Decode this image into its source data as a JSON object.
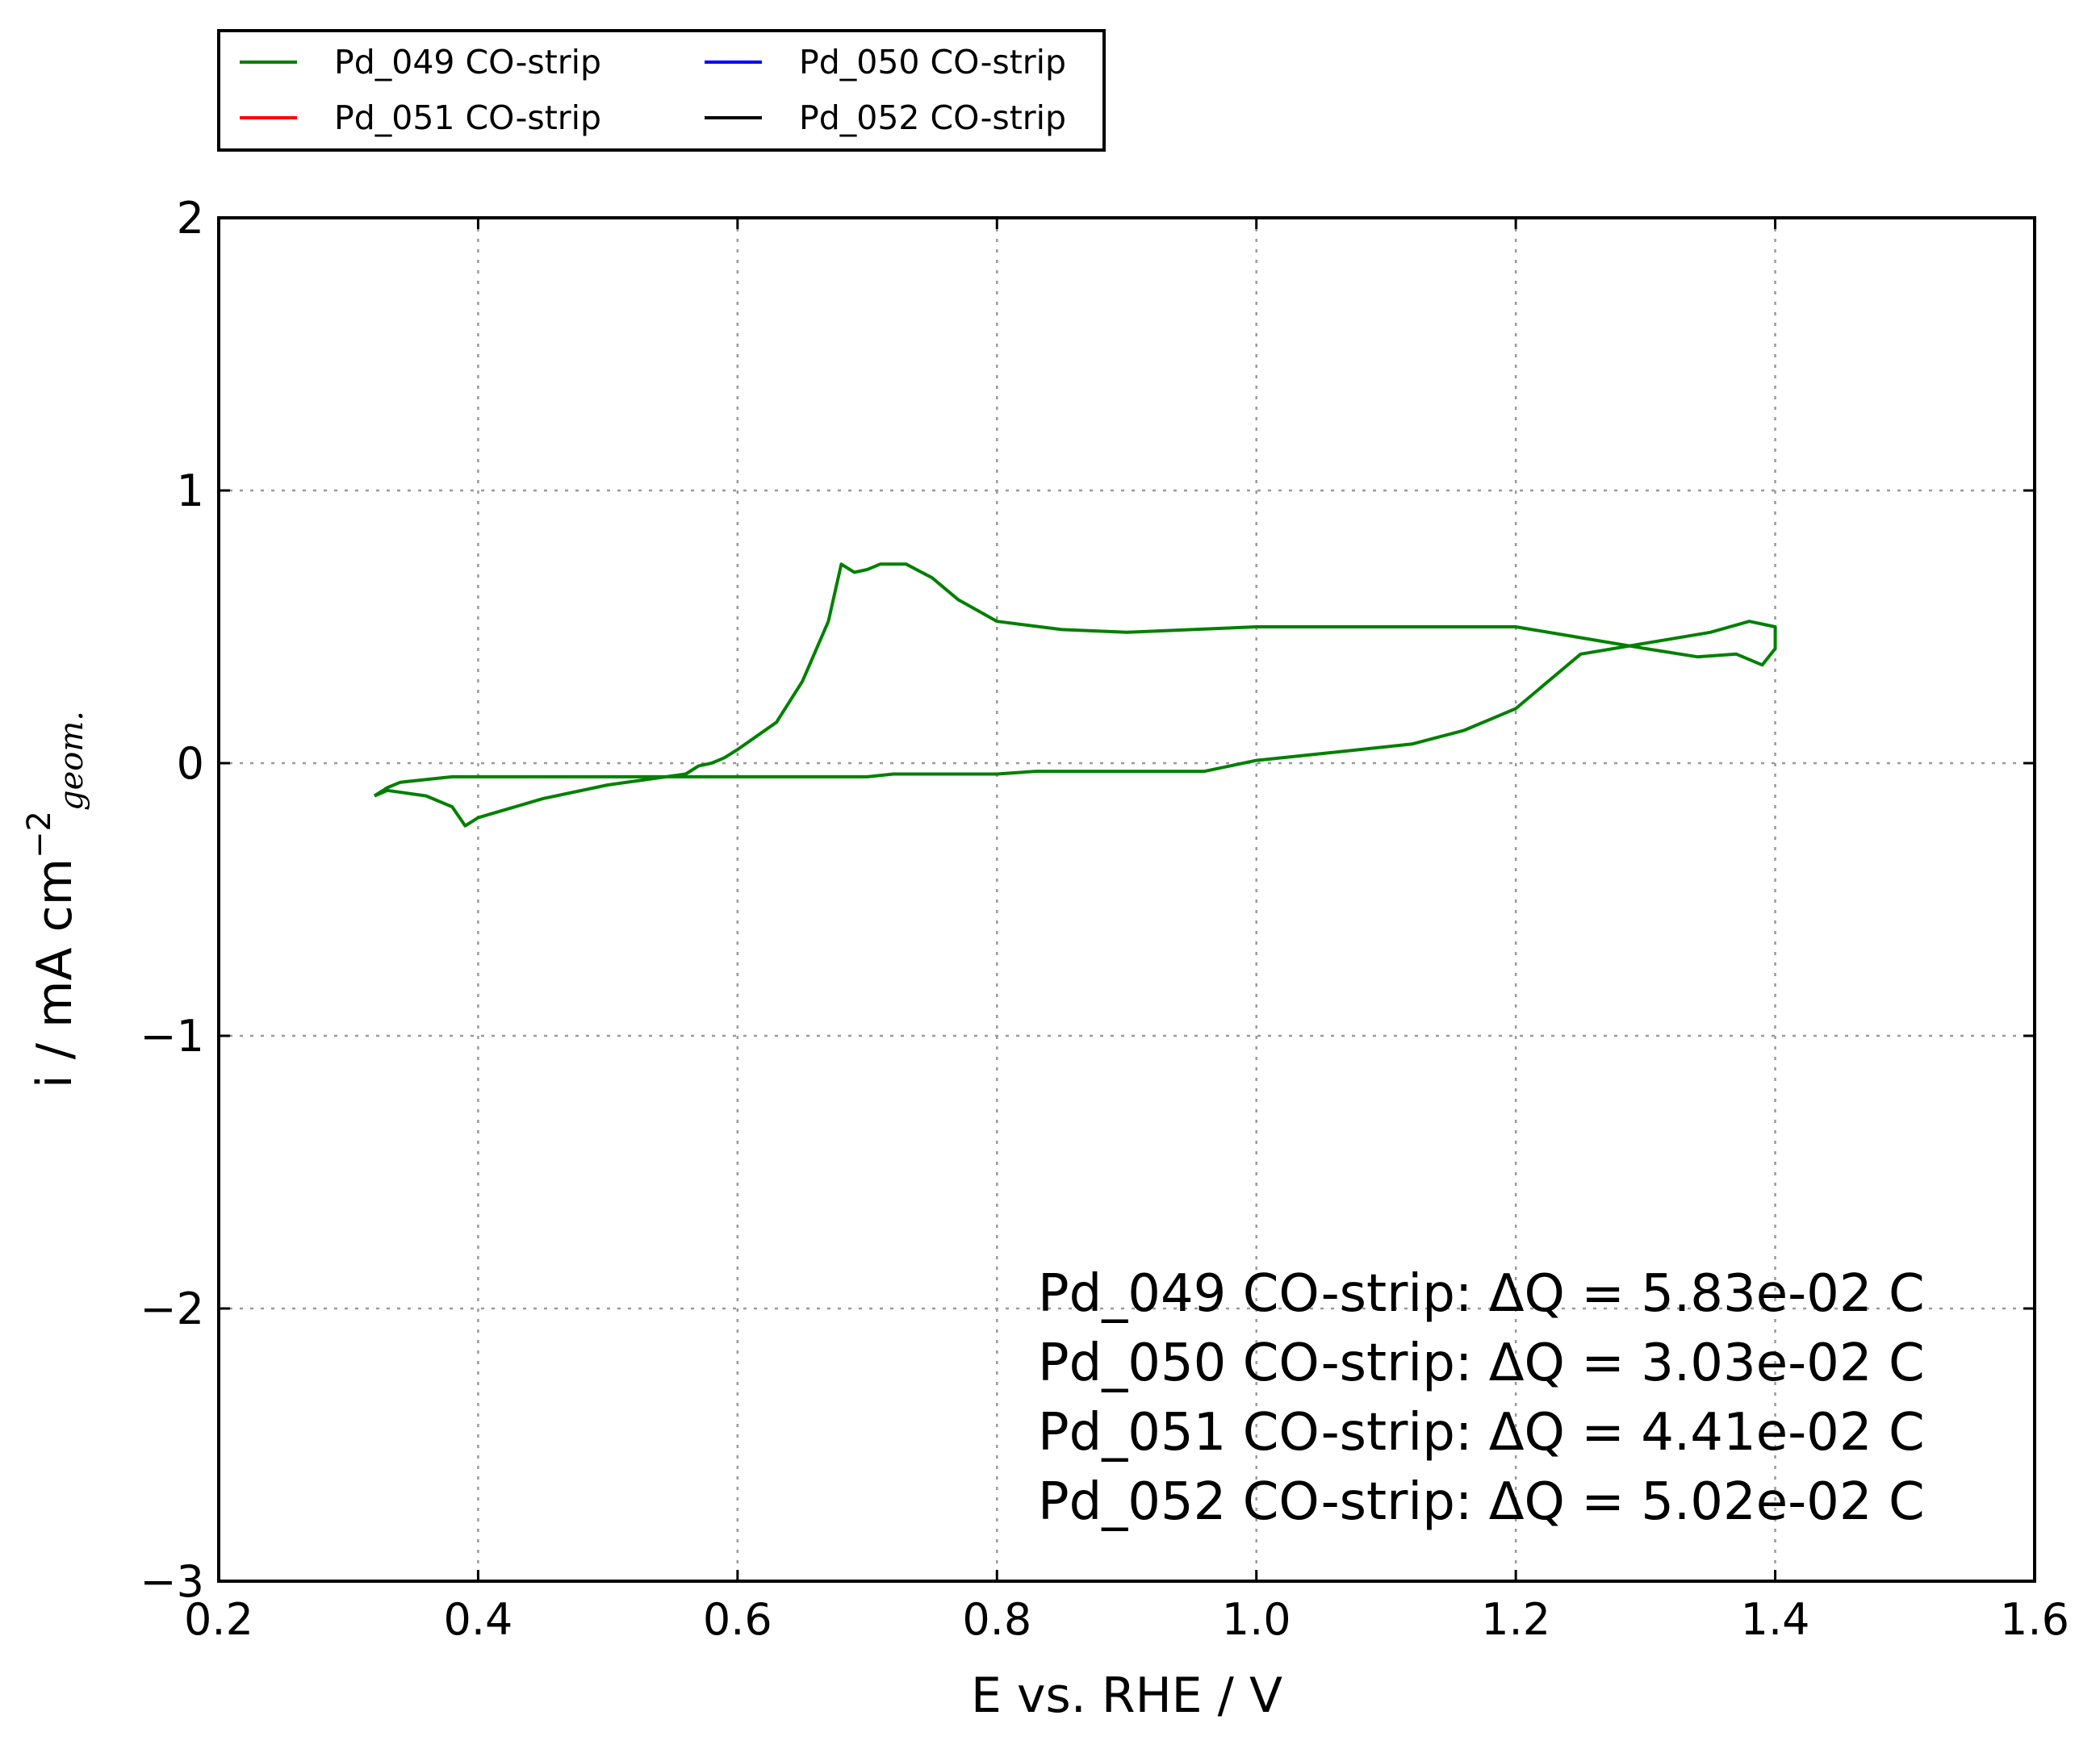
{
  "chart_data": {
    "type": "line",
    "xlabel": "E vs. RHE / V",
    "ylabel": "i / mA cm",
    "ylabel_superscript": "−2",
    "ylabel_subscript": "geom.",
    "xlim": [
      0.2,
      1.6
    ],
    "ylim": [
      -3,
      2
    ],
    "xticks": [
      0.2,
      0.4,
      0.6,
      0.8,
      1.0,
      1.2,
      1.4,
      1.6
    ],
    "xtick_labels": [
      "0.2",
      "0.4",
      "0.6",
      "0.8",
      "1.0",
      "1.2",
      "1.4",
      "1.6"
    ],
    "yticks": [
      -3,
      -2,
      -1,
      0,
      1,
      2
    ],
    "ytick_labels": [
      "−3",
      "−2",
      "−1",
      "0",
      "1",
      "2"
    ],
    "grid": true,
    "legend_position": "above-top-left",
    "series": [
      {
        "name": "Pd_049 CO-strip",
        "color": "#008000",
        "x": [
          0.32,
          0.33,
          0.34,
          0.36,
          0.38,
          0.42,
          0.5,
          0.55,
          0.6,
          0.65,
          0.7,
          0.72,
          0.75,
          0.78,
          0.8,
          0.83,
          0.85,
          0.87,
          0.88,
          0.9,
          0.93,
          0.96,
          1.0,
          1.04,
          1.08,
          1.12,
          1.16,
          1.2,
          1.25,
          1.3,
          1.35,
          1.38,
          1.4,
          1.4,
          1.39,
          1.37,
          1.34,
          1.3,
          1.25,
          1.2,
          1.1,
          1.0,
          0.9,
          0.85,
          0.8,
          0.77,
          0.75,
          0.73,
          0.71,
          0.7,
          0.69,
          0.68,
          0.67,
          0.65,
          0.63,
          0.6,
          0.59,
          0.58,
          0.57,
          0.56,
          0.5,
          0.45,
          0.4,
          0.39,
          0.38,
          0.36,
          0.33,
          0.32
        ],
        "y": [
          -0.12,
          -0.09,
          -0.07,
          -0.06,
          -0.05,
          -0.05,
          -0.05,
          -0.05,
          -0.05,
          -0.05,
          -0.05,
          -0.04,
          -0.04,
          -0.04,
          -0.04,
          -0.03,
          -0.03,
          -0.03,
          -0.03,
          -0.03,
          -0.03,
          -0.03,
          0.01,
          0.03,
          0.05,
          0.07,
          0.12,
          0.2,
          0.4,
          0.44,
          0.48,
          0.52,
          0.5,
          0.42,
          0.36,
          0.4,
          0.39,
          0.42,
          0.46,
          0.5,
          0.5,
          0.5,
          0.48,
          0.49,
          0.52,
          0.6,
          0.68,
          0.73,
          0.73,
          0.71,
          0.7,
          0.73,
          0.52,
          0.3,
          0.15,
          0.05,
          0.02,
          0.0,
          -0.01,
          -0.04,
          -0.08,
          -0.13,
          -0.2,
          -0.23,
          -0.16,
          -0.12,
          -0.1,
          -0.12
        ],
        "y_note": "ordered as a closed cycle"
      }
    ]
  },
  "legend": {
    "items": [
      {
        "label": "Pd_049 CO-strip",
        "color": "#008000"
      },
      {
        "label": "Pd_050 CO-strip",
        "color": "#0000ff"
      },
      {
        "label": "Pd_051 CO-strip",
        "color": "#ff0000"
      },
      {
        "label": "Pd_052 CO-strip",
        "color": "#000000"
      }
    ]
  },
  "annotations": [
    "Pd_049 CO-strip: ΔQ = 5.83e-02 C",
    "Pd_050 CO-strip: ΔQ = 3.03e-02 C",
    "Pd_051 CO-strip: ΔQ = 4.41e-02 C",
    "Pd_052 CO-strip: ΔQ = 5.02e-02 C"
  ]
}
